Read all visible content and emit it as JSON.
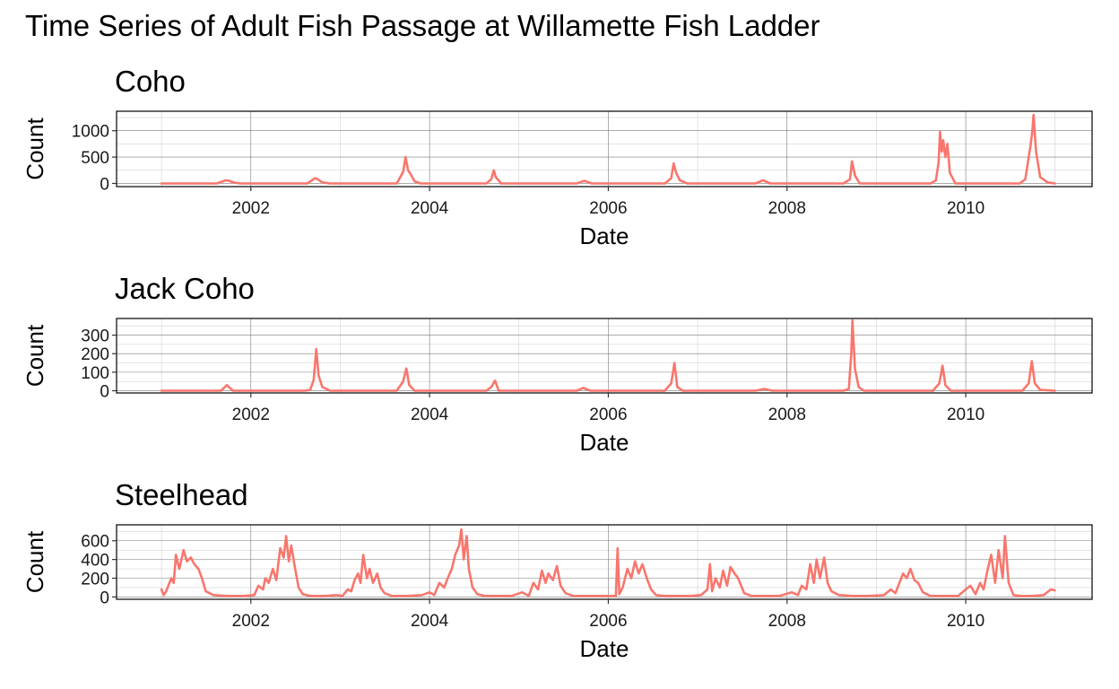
{
  "title": "Time Series of Adult Fish Passage at Willamette Fish Ladder",
  "line_color": "#F8766D",
  "chart_data": [
    {
      "type": "line",
      "title": "Coho",
      "xlabel": "Date",
      "ylabel": "Count",
      "xlim": [
        "2000-07-01",
        "2011-06-01"
      ],
      "ylim": [
        -60,
        1370
      ],
      "x_ticks": [
        2002,
        2004,
        2006,
        2008,
        2010
      ],
      "y_ticks": [
        0,
        500,
        1000
      ],
      "grid": true,
      "series": [
        {
          "x": [
            "2001-01-01",
            "2001-08-15",
            "2001-09-20",
            "2001-10-05",
            "2001-10-25",
            "2001-11-20",
            "2002-08-20",
            "2002-09-20",
            "2002-10-01",
            "2002-10-20",
            "2002-11-20",
            "2003-08-20",
            "2003-09-15",
            "2003-09-25",
            "2003-10-05",
            "2003-10-15",
            "2003-11-01",
            "2003-11-25",
            "2004-08-20",
            "2004-09-10",
            "2004-09-20",
            "2004-09-28",
            "2004-10-20",
            "2005-08-25",
            "2005-09-25",
            "2005-10-25",
            "2006-08-20",
            "2006-09-15",
            "2006-09-25",
            "2006-10-05",
            "2006-10-20",
            "2006-11-20",
            "2007-08-25",
            "2007-09-25",
            "2007-10-25",
            "2008-08-20",
            "2008-09-15",
            "2008-09-23",
            "2008-10-05",
            "2008-10-25",
            "2009-08-10",
            "2009-09-01",
            "2009-09-12",
            "2009-09-18",
            "2009-09-25",
            "2009-10-01",
            "2009-10-10",
            "2009-10-18",
            "2009-10-28",
            "2009-11-20",
            "2010-08-10",
            "2010-09-01",
            "2010-09-15",
            "2010-09-22",
            "2010-09-30",
            "2010-10-05",
            "2010-10-15",
            "2010-11-01",
            "2010-12-01",
            "2010-12-31"
          ],
          "y": [
            0,
            0,
            60,
            50,
            15,
            0,
            0,
            100,
            80,
            20,
            0,
            0,
            220,
            500,
            250,
            180,
            40,
            0,
            0,
            80,
            250,
            120,
            0,
            0,
            50,
            0,
            0,
            100,
            380,
            200,
            60,
            0,
            0,
            60,
            0,
            0,
            80,
            420,
            150,
            0,
            0,
            60,
            400,
            980,
            600,
            820,
            500,
            750,
            200,
            0,
            0,
            80,
            500,
            700,
            1000,
            1300,
            600,
            120,
            20,
            0
          ]
        }
      ]
    },
    {
      "type": "line",
      "title": "Jack Coho",
      "xlabel": "Date",
      "ylabel": "Count",
      "xlim": [
        "2000-07-01",
        "2011-06-01"
      ],
      "ylim": [
        -12,
        390
      ],
      "x_ticks": [
        2002,
        2004,
        2006,
        2008,
        2010
      ],
      "y_ticks": [
        0,
        100,
        200,
        300
      ],
      "grid": true,
      "series": [
        {
          "x": [
            "2001-01-01",
            "2001-09-01",
            "2001-09-25",
            "2001-10-20",
            "2002-08-10",
            "2002-09-01",
            "2002-09-15",
            "2002-09-25",
            "2002-10-05",
            "2002-10-20",
            "2002-11-20",
            "2003-08-20",
            "2003-09-15",
            "2003-09-28",
            "2003-10-10",
            "2003-11-01",
            "2004-08-20",
            "2004-09-10",
            "2004-09-25",
            "2004-10-10",
            "2005-08-25",
            "2005-09-20",
            "2005-10-20",
            "2006-08-20",
            "2006-09-15",
            "2006-09-28",
            "2006-10-10",
            "2006-11-01",
            "2007-08-25",
            "2007-10-01",
            "2007-11-01",
            "2008-08-20",
            "2008-09-10",
            "2008-09-20",
            "2008-09-25",
            "2008-10-05",
            "2008-10-20",
            "2008-11-10",
            "2009-08-20",
            "2009-09-15",
            "2009-09-28",
            "2009-10-10",
            "2009-11-01",
            "2010-08-20",
            "2010-09-15",
            "2010-09-28",
            "2010-10-10",
            "2010-11-01",
            "2010-12-31"
          ],
          "y": [
            0,
            0,
            30,
            0,
            0,
            5,
            60,
            225,
            80,
            20,
            0,
            0,
            50,
            120,
            30,
            0,
            0,
            20,
            55,
            0,
            0,
            15,
            0,
            0,
            40,
            150,
            20,
            0,
            0,
            10,
            0,
            0,
            10,
            200,
            380,
            120,
            20,
            0,
            0,
            40,
            135,
            30,
            0,
            0,
            40,
            160,
            40,
            5,
            0
          ]
        }
      ]
    },
    {
      "type": "line",
      "title": "Steelhead",
      "xlabel": "Date",
      "ylabel": "Count",
      "xlim": [
        "2000-07-01",
        "2011-06-01"
      ],
      "ylim": [
        -25,
        770
      ],
      "x_ticks": [
        2002,
        2004,
        2006,
        2008,
        2010
      ],
      "y_ticks": [
        0,
        200,
        400,
        600
      ],
      "grid": true,
      "series": [
        {
          "x": [
            "2001-01-01",
            "2001-01-10",
            "2001-01-20",
            "2001-02-10",
            "2001-02-20",
            "2001-03-01",
            "2001-03-15",
            "2001-04-01",
            "2001-04-15",
            "2001-05-01",
            "2001-05-15",
            "2001-06-01",
            "2001-06-15",
            "2001-07-01",
            "2001-08-01",
            "2001-10-01",
            "2001-12-01",
            "2002-01-15",
            "2002-02-01",
            "2002-02-20",
            "2002-03-01",
            "2002-03-15",
            "2002-04-01",
            "2002-04-15",
            "2002-05-01",
            "2002-05-15",
            "2002-05-25",
            "2002-06-05",
            "2002-06-15",
            "2002-07-01",
            "2002-07-15",
            "2002-08-01",
            "2002-09-01",
            "2002-11-01",
            "2002-12-15",
            "2003-01-10",
            "2003-02-01",
            "2003-02-15",
            "2003-03-01",
            "2003-03-15",
            "2003-03-25",
            "2003-04-05",
            "2003-04-20",
            "2003-05-01",
            "2003-05-15",
            "2003-06-01",
            "2003-06-15",
            "2003-07-01",
            "2003-08-01",
            "2003-10-01",
            "2003-12-01",
            "2004-01-01",
            "2004-01-20",
            "2004-02-10",
            "2004-03-01",
            "2004-03-15",
            "2004-04-01",
            "2004-04-15",
            "2004-05-01",
            "2004-05-10",
            "2004-05-20",
            "2004-06-01",
            "2004-06-10",
            "2004-06-25",
            "2004-07-15",
            "2004-08-15",
            "2004-10-01",
            "2004-12-01",
            "2005-01-15",
            "2005-02-10",
            "2005-03-01",
            "2005-03-20",
            "2005-04-05",
            "2005-04-20",
            "2005-05-01",
            "2005-05-20",
            "2005-06-05",
            "2005-06-20",
            "2005-07-10",
            "2005-08-10",
            "2005-10-01",
            "2005-12-01",
            "2006-01-15",
            "2006-02-01",
            "2006-02-08",
            "2006-02-15",
            "2006-03-01",
            "2006-03-20",
            "2006-04-05",
            "2006-04-20",
            "2006-05-05",
            "2006-05-20",
            "2006-06-10",
            "2006-06-25",
            "2006-07-15",
            "2006-08-20",
            "2006-10-15",
            "2006-12-01",
            "2007-01-15",
            "2007-02-10",
            "2007-02-20",
            "2007-03-01",
            "2007-03-15",
            "2007-04-01",
            "2007-04-15",
            "2007-05-01",
            "2007-05-15",
            "2007-06-01",
            "2007-06-15",
            "2007-07-10",
            "2007-08-10",
            "2007-10-01",
            "2007-12-01",
            "2008-01-20",
            "2008-02-15",
            "2008-03-01",
            "2008-03-20",
            "2008-04-05",
            "2008-04-20",
            "2008-05-01",
            "2008-05-15",
            "2008-06-01",
            "2008-06-15",
            "2008-07-01",
            "2008-08-01",
            "2008-10-01",
            "2008-12-01",
            "2009-02-01",
            "2009-03-01",
            "2009-03-20",
            "2009-04-05",
            "2009-04-20",
            "2009-05-05",
            "2009-05-20",
            "2009-06-05",
            "2009-06-20",
            "2009-07-10",
            "2009-08-10",
            "2009-10-01",
            "2009-12-01",
            "2010-01-01",
            "2010-01-20",
            "2010-02-10",
            "2010-03-01",
            "2010-03-15",
            "2010-04-01",
            "2010-04-15",
            "2010-05-01",
            "2010-05-15",
            "2010-06-01",
            "2010-06-10",
            "2010-06-25",
            "2010-07-15",
            "2010-08-15",
            "2010-10-01",
            "2010-11-15",
            "2010-12-15",
            "2010-12-31"
          ],
          "y": [
            80,
            20,
            60,
            200,
            150,
            450,
            300,
            500,
            380,
            420,
            350,
            300,
            200,
            60,
            20,
            10,
            10,
            20,
            120,
            80,
            200,
            150,
            300,
            180,
            520,
            420,
            650,
            380,
            550,
            300,
            100,
            30,
            10,
            10,
            20,
            10,
            80,
            60,
            180,
            250,
            150,
            450,
            200,
            300,
            150,
            250,
            100,
            40,
            10,
            10,
            20,
            50,
            20,
            150,
            100,
            200,
            300,
            450,
            550,
            720,
            400,
            650,
            300,
            100,
            30,
            10,
            10,
            10,
            50,
            10,
            150,
            80,
            280,
            150,
            250,
            180,
            330,
            120,
            40,
            10,
            10,
            10,
            10,
            10,
            520,
            30,
            100,
            300,
            200,
            380,
            250,
            350,
            180,
            80,
            20,
            10,
            10,
            10,
            20,
            80,
            350,
            60,
            200,
            100,
            280,
            120,
            320,
            250,
            200,
            40,
            10,
            10,
            10,
            50,
            20,
            120,
            80,
            350,
            150,
            400,
            200,
            420,
            150,
            60,
            20,
            10,
            10,
            20,
            80,
            40,
            150,
            250,
            200,
            300,
            180,
            150,
            50,
            10,
            10,
            10,
            80,
            120,
            30,
            150,
            80,
            300,
            450,
            150,
            500,
            200,
            650,
            150,
            20,
            10,
            10,
            20,
            80,
            70
          ]
        }
      ]
    }
  ]
}
